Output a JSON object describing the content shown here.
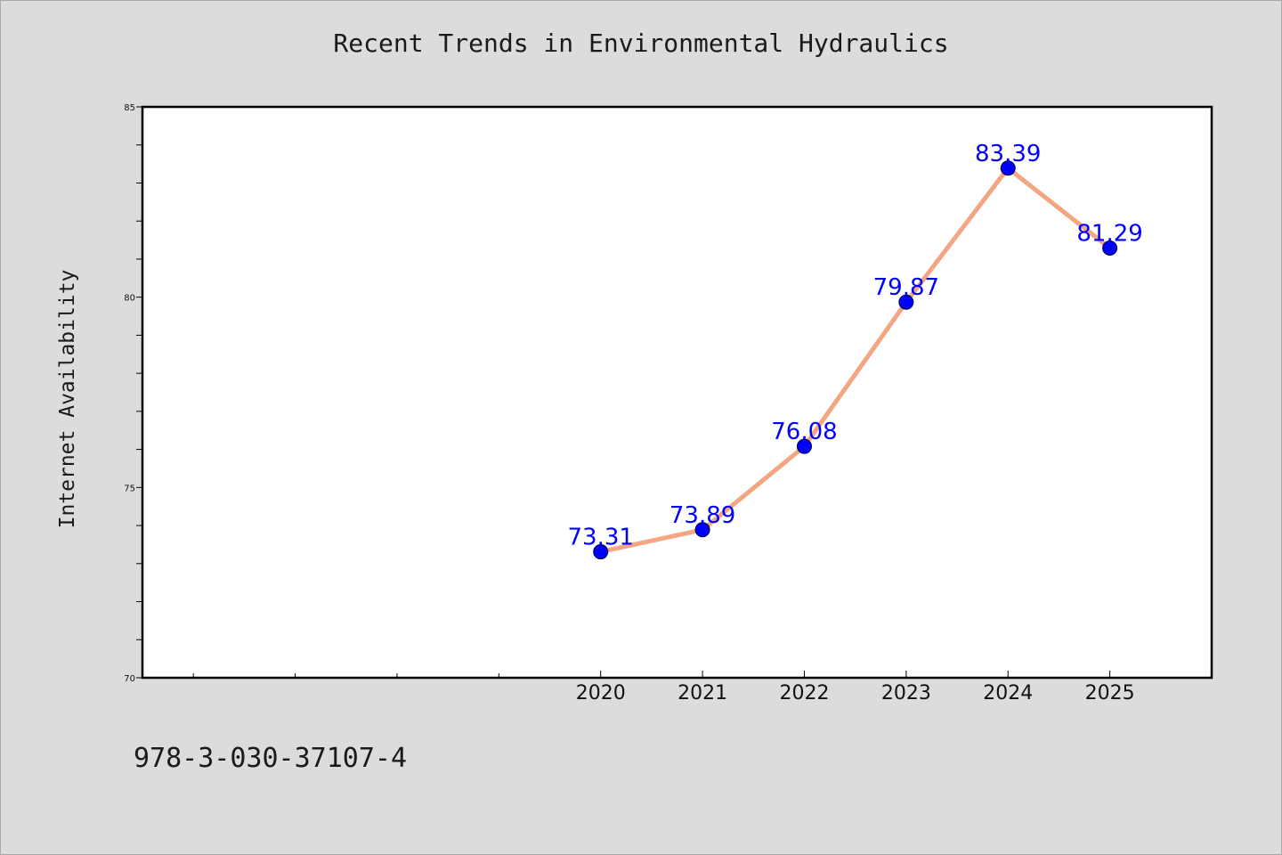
{
  "chart_data": {
    "type": "line",
    "title": "Recent Trends in Environmental Hydraulics",
    "xlabel": "",
    "ylabel": "Internet Availability",
    "x": [
      2020,
      2021,
      2022,
      2023,
      2024,
      2025
    ],
    "categories": [
      "2020",
      "2021",
      "2022",
      "2023",
      "2024",
      "2025"
    ],
    "series": [
      {
        "values": [
          73.31,
          73.89,
          76.08,
          79.87,
          83.39,
          81.29
        ]
      }
    ],
    "data_labels": [
      "73.31",
      "73.89",
      "76.08",
      "79.87",
      "83.39",
      "81.29"
    ],
    "xlim": [
      2015.5,
      2026
    ],
    "ylim": [
      70,
      85
    ],
    "yticks": [
      70,
      75,
      80,
      85
    ],
    "ytick_labels": [
      "70",
      "75",
      "80",
      "85"
    ],
    "grid": false,
    "legend": "none",
    "colors": {
      "line": "#f4a582",
      "marker": "#0000ff",
      "label": "#0000ff",
      "background": "#dcdcdc",
      "plot_background": "#ffffff"
    }
  },
  "footer": {
    "isbn": "978-3-030-37107-4"
  }
}
